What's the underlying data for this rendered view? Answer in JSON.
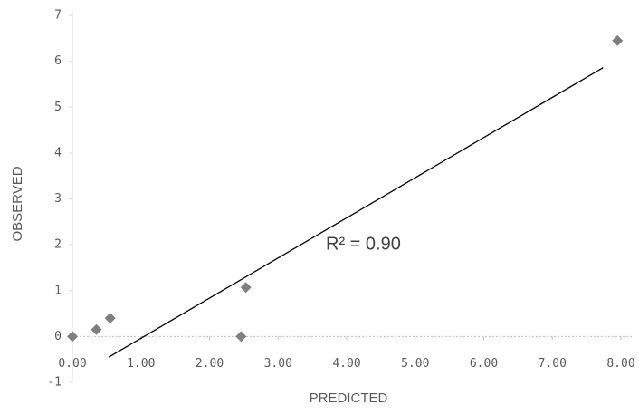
{
  "chart_data": {
    "type": "scatter",
    "x_label": "PREDICTED",
    "y_label": "OBSERVED",
    "annotation": "R² = 0.90",
    "x": [
      0,
      0.35,
      0.55,
      2.46,
      2.53,
      7.95
    ],
    "values": [
      0,
      0.15,
      0.4,
      0,
      1.07,
      6.45
    ],
    "color": "#7f7f7f",
    "trendline": {
      "x": [
        0.53,
        7.74
      ],
      "y": [
        -0.45,
        5.86
      ],
      "color": "#000000"
    },
    "xlim": [
      0,
      8
    ],
    "ylim": [
      -1,
      7
    ],
    "xticks": [
      {
        "value": 0,
        "label": "0.00"
      },
      {
        "value": 1,
        "label": "1.00"
      },
      {
        "value": 2,
        "label": "2.00"
      },
      {
        "value": 3,
        "label": "3.00"
      },
      {
        "value": 4,
        "label": "4.00"
      },
      {
        "value": 5,
        "label": "5.00"
      },
      {
        "value": 6,
        "label": "6.00"
      },
      {
        "value": 7,
        "label": "7.00"
      },
      {
        "value": 8,
        "label": "8.00"
      }
    ],
    "yticks": [
      -1,
      0,
      1,
      2,
      3,
      4,
      5,
      6,
      7
    ]
  }
}
